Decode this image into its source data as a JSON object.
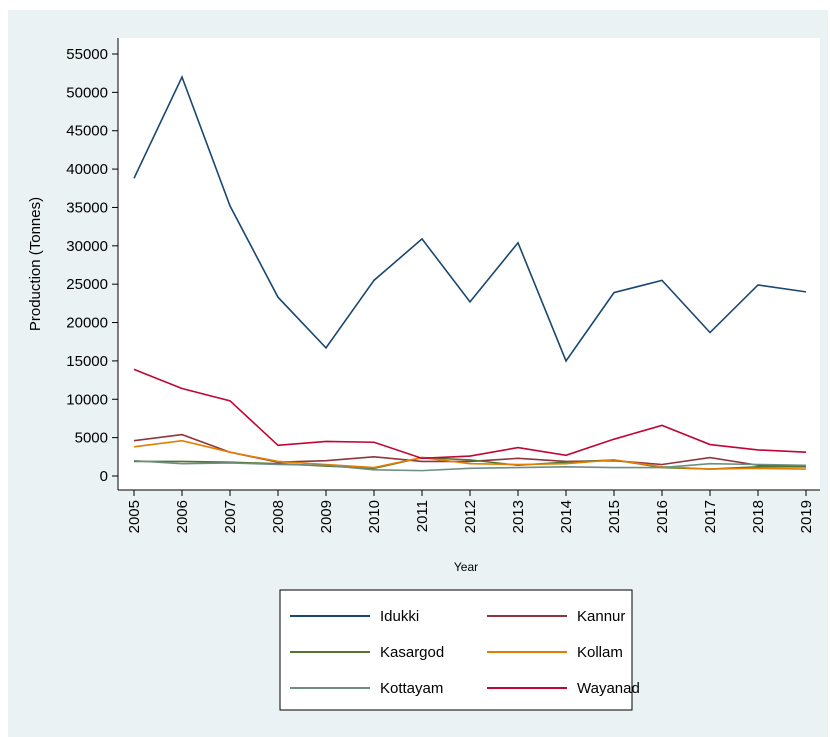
{
  "chart_data": {
    "type": "line",
    "xlabel": "Year",
    "ylabel": "Production (Tonnes)",
    "x": [
      2005,
      2006,
      2007,
      2008,
      2009,
      2010,
      2011,
      2012,
      2013,
      2014,
      2015,
      2016,
      2017,
      2018,
      2019
    ],
    "xlim": [
      2005,
      2019
    ],
    "xticks": [
      2005,
      2006,
      2007,
      2008,
      2009,
      2010,
      2011,
      2012,
      2013,
      2014,
      2015,
      2016,
      2017,
      2018,
      2019
    ],
    "ylim": [
      0,
      55000
    ],
    "yticks": [
      0,
      5000,
      10000,
      15000,
      20000,
      25000,
      30000,
      35000,
      40000,
      45000,
      50000,
      55000
    ],
    "grid": false,
    "series": [
      {
        "name": "Idukki",
        "color": "#1a476f",
        "values": [
          38800,
          52000,
          35200,
          23300,
          16700,
          25500,
          30900,
          22700,
          30400,
          15000,
          23900,
          25500,
          18700,
          24900,
          24000
        ]
      },
      {
        "name": "Kannur",
        "color": "#90353b",
        "values": [
          4600,
          5400,
          3100,
          1800,
          2000,
          2500,
          1900,
          1900,
          2300,
          1900,
          2000,
          1500,
          2400,
          1400,
          1300
        ]
      },
      {
        "name": "Kasargod",
        "color": "#55752f",
        "values": [
          1900,
          1900,
          1800,
          1600,
          1300,
          1000,
          2400,
          2100,
          1400,
          1800,
          2100,
          1100,
          900,
          1200,
          1200
        ]
      },
      {
        "name": "Kollam",
        "color": "#e37e00",
        "values": [
          3800,
          4600,
          3100,
          1900,
          1500,
          1100,
          2400,
          1600,
          1500,
          1600,
          2100,
          1200,
          900,
          1000,
          900
        ]
      },
      {
        "name": "Kottayam",
        "color": "#6e8e84",
        "values": [
          2000,
          1600,
          1700,
          1500,
          1400,
          800,
          700,
          1000,
          1100,
          1200,
          1100,
          1100,
          1600,
          1500,
          1400
        ]
      },
      {
        "name": "Wayanad",
        "color": "#c10534",
        "values": [
          13900,
          11400,
          9800,
          4000,
          4500,
          4400,
          2300,
          2600,
          3700,
          2700,
          4800,
          6600,
          4100,
          3400,
          3100
        ]
      }
    ]
  }
}
